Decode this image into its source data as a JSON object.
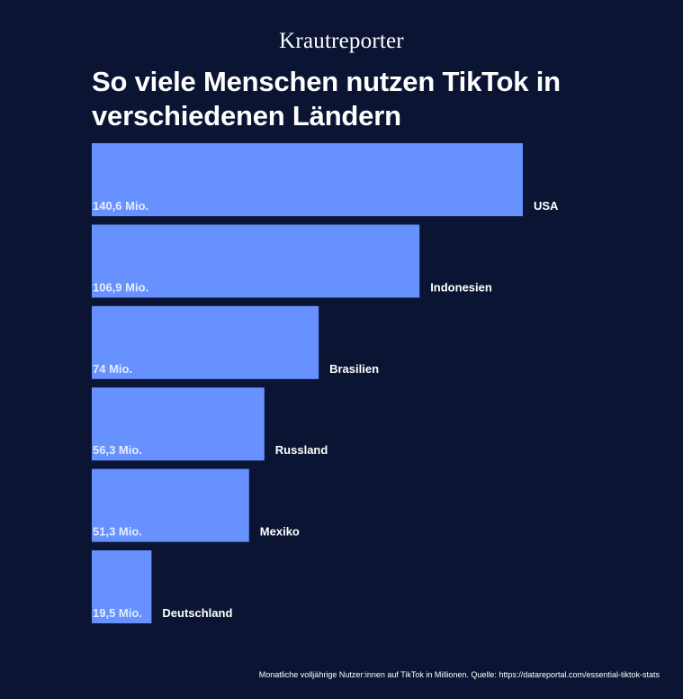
{
  "brand": {
    "name": "Krautreporter"
  },
  "colors": {
    "background": "#0b1533",
    "bar": "#6691ff",
    "value_label": "#e6ecff",
    "text": "#ffffff"
  },
  "chart_data": {
    "type": "bar",
    "orientation": "horizontal",
    "title": "So viele Menschen nutzen TikTok in verschiedenen Ländern",
    "categories": [
      "USA",
      "Indonesien",
      "Brasilien",
      "Russland",
      "Mexiko",
      "Deutschland"
    ],
    "values": [
      140.6,
      106.9,
      74,
      56.3,
      51.3,
      19.5
    ],
    "value_labels": [
      "140,6 Mio.",
      "106,9 Mio.",
      "74 Mio.",
      "56,3 Mio.",
      "51,3 Mio.",
      "19,5 Mio."
    ],
    "xlim": [
      0,
      140.6
    ],
    "grid": false,
    "legend": "none"
  },
  "footer": {
    "source": "Monatliche volljährige Nutzer:innen auf TikTok in Millionen. Quelle: https://datareportal.com/essential-tiktok-stats"
  }
}
